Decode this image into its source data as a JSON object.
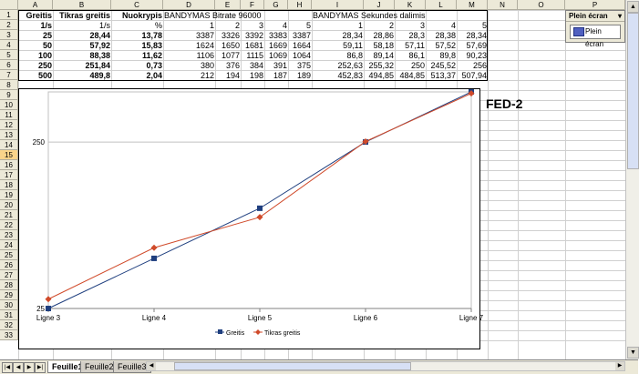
{
  "columns": [
    "A",
    "B",
    "C",
    "D",
    "E",
    "F",
    "G",
    "H",
    "I",
    "J",
    "K",
    "L",
    "M",
    "N",
    "O",
    "P"
  ],
  "rows": [
    "1",
    "2",
    "3",
    "4",
    "5",
    "6",
    "7",
    "8",
    "9",
    "10",
    "11",
    "12",
    "13",
    "14",
    "15",
    "16",
    "17",
    "18",
    "19",
    "20",
    "21",
    "22",
    "23",
    "24",
    "25",
    "26",
    "27",
    "28",
    "29",
    "30",
    "31",
    "32",
    "33"
  ],
  "table": {
    "row1": {
      "a": "Greitis",
      "b": "Tikras greitis",
      "c": "Nuokrypis",
      "d": "BANDYMAS Bitrate 96000",
      "i": "BANDYMAS Sekundes dalimis"
    },
    "row2": {
      "a": "1/s",
      "b": "1/s",
      "c": "%",
      "d": "1",
      "e": "2",
      "f": "3",
      "g": "4",
      "h": "5",
      "i": "1",
      "j": "2",
      "k": "3",
      "l": "4",
      "m": "5"
    },
    "data": [
      {
        "a": "25",
        "b": "28,44",
        "c": "13,78",
        "d": "3387",
        "e": "3326",
        "f": "3392",
        "g": "3383",
        "h": "3387",
        "i": "28,34",
        "j": "28,86",
        "k": "28,3",
        "l": "28,38",
        "m": "28,34"
      },
      {
        "a": "50",
        "b": "57,92",
        "c": "15,83",
        "d": "1624",
        "e": "1650",
        "f": "1681",
        "g": "1669",
        "h": "1664",
        "i": "59,11",
        "j": "58,18",
        "k": "57,11",
        "l": "57,52",
        "m": "57,69"
      },
      {
        "a": "100",
        "b": "88,38",
        "c": "11,62",
        "d": "1106",
        "e": "1077",
        "f": "1115",
        "g": "1069",
        "h": "1064",
        "i": "86,8",
        "j": "89,14",
        "k": "86,1",
        "l": "89,8",
        "m": "90,23"
      },
      {
        "a": "250",
        "b": "251,84",
        "c": "0,73",
        "d": "380",
        "e": "376",
        "f": "384",
        "g": "391",
        "h": "375",
        "i": "252,63",
        "j": "255,32",
        "k": "250",
        "l": "245,52",
        "m": "256"
      },
      {
        "a": "500",
        "b": "489,8",
        "c": "2,04",
        "d": "212",
        "e": "194",
        "f": "198",
        "g": "187",
        "h": "189",
        "i": "452,83",
        "j": "494,85",
        "k": "484,85",
        "l": "513,37",
        "m": "507,94"
      }
    ]
  },
  "panel": {
    "title": "Plein écran",
    "button": "Plein écran"
  },
  "fed_label": "FED-2",
  "sheet_tabs": [
    "Feuille1",
    "Feuille2",
    "Feuille3"
  ],
  "chart_data": {
    "type": "line",
    "categories": [
      "Ligne 3",
      "Ligne 4",
      "Ligne 5",
      "Ligne 6",
      "Ligne 7"
    ],
    "series": [
      {
        "name": "Greitis",
        "values": [
          25,
          50,
          100,
          250,
          500
        ],
        "color": "#1f3f7f",
        "marker": "square"
      },
      {
        "name": "Tikras greitis",
        "values": [
          28.44,
          57.92,
          88.38,
          251.84,
          489.8
        ],
        "color": "#d04a2a",
        "marker": "diamond"
      }
    ],
    "yscale": "log",
    "yticks": [
      "25",
      "250"
    ],
    "ylim": [
      25,
      500
    ],
    "legend": "bottom"
  }
}
